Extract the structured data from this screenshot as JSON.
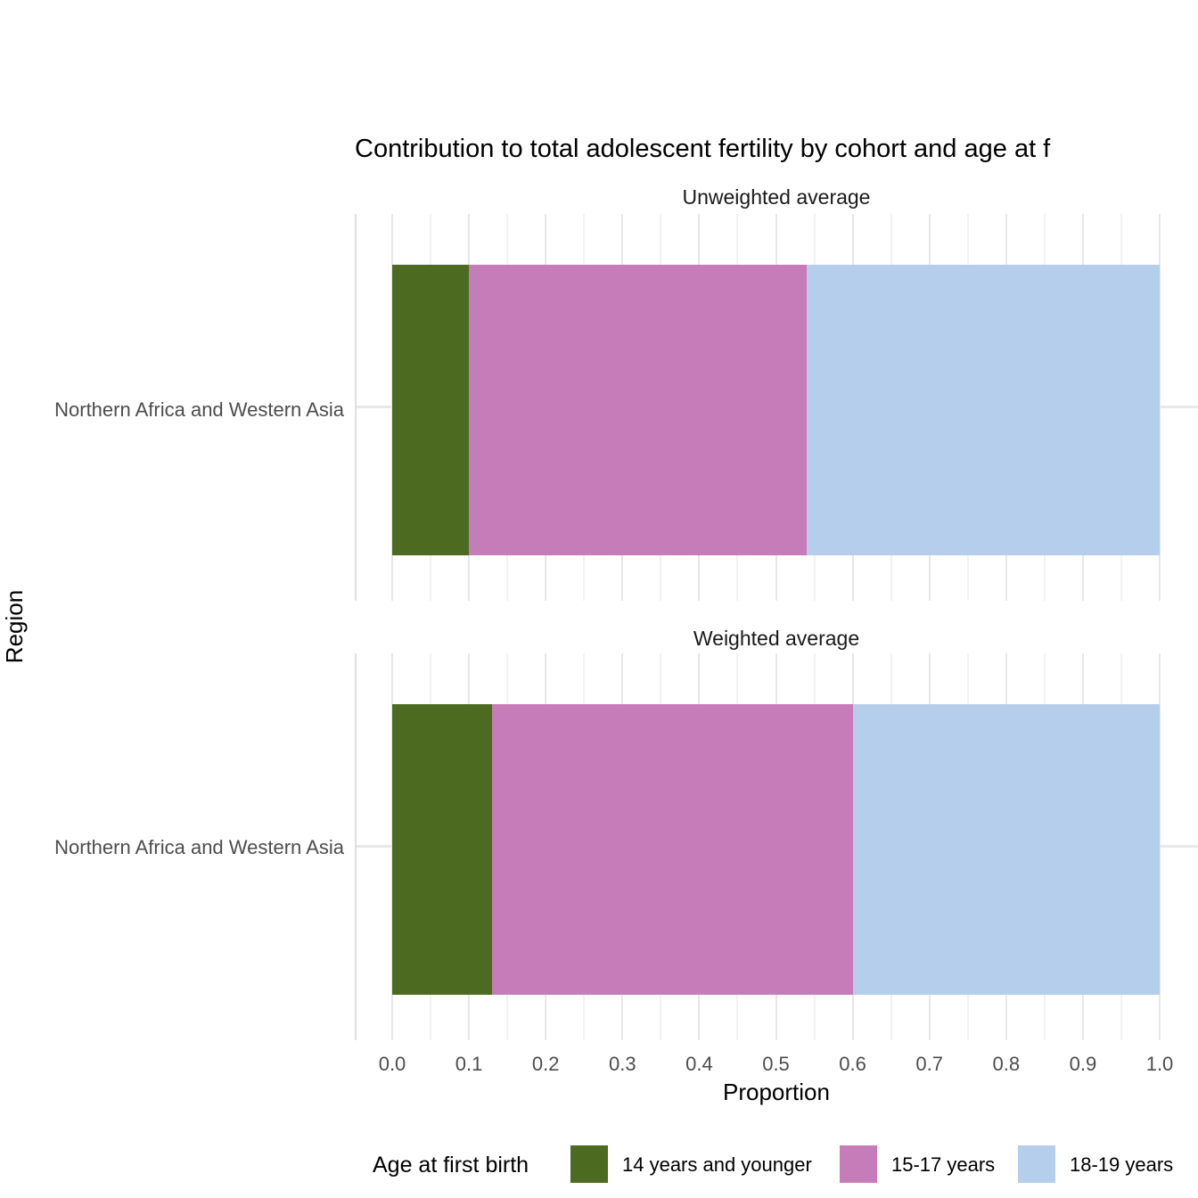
{
  "title": "Contribution to total adolescent fertility by cohort and age at f",
  "axes": {
    "x_label": "Proportion",
    "y_label": "Region",
    "category": "Northern Africa and Western Asia",
    "x_ticks": [
      "0.0",
      "0.1",
      "0.2",
      "0.3",
      "0.4",
      "0.5",
      "0.6",
      "0.7",
      "0.8",
      "0.9",
      "1.0"
    ]
  },
  "panels": [
    {
      "strip": "Unweighted average"
    },
    {
      "strip": "Weighted average"
    }
  ],
  "legend": {
    "title": "Age at first birth",
    "items": [
      {
        "label": "14 years and younger",
        "color": "#4C6A20"
      },
      {
        "label": "15-17 years",
        "color": "#C77CBA"
      },
      {
        "label": "18-19 years",
        "color": "#B5CEEC"
      }
    ]
  },
  "colors": {
    "grid_major": "#E7E7E7",
    "grid_minor": "#F2F2F2",
    "axis_text": "#4D4D4D",
    "strip_text": "#1A1A1A"
  },
  "chart_data": {
    "type": "bar",
    "orientation": "horizontal",
    "stacked": true,
    "title": "Contribution to total adolescent fertility by cohort and age at f",
    "xlabel": "Proportion",
    "ylabel": "Region",
    "xlim": [
      0,
      1
    ],
    "x_tick_values": [
      0.0,
      0.1,
      0.2,
      0.3,
      0.4,
      0.5,
      0.6,
      0.7,
      0.8,
      0.9,
      1.0
    ],
    "grid": true,
    "legend_position": "bottom",
    "legend_title": "Age at first birth",
    "categories": [
      "Northern Africa and Western Asia"
    ],
    "facets": [
      {
        "label": "Unweighted average",
        "category": "Northern Africa and Western Asia",
        "series": [
          {
            "name": "14 years and younger",
            "value": 0.1
          },
          {
            "name": "15-17 years",
            "value": 0.44
          },
          {
            "name": "18-19 years",
            "value": 0.46
          }
        ]
      },
      {
        "label": "Weighted average",
        "category": "Northern Africa and Western Asia",
        "series": [
          {
            "name": "14 years and younger",
            "value": 0.13
          },
          {
            "name": "15-17 years",
            "value": 0.47
          },
          {
            "name": "18-19 years",
            "value": 0.4
          }
        ]
      }
    ],
    "series_colors": {
      "14 years and younger": "#4C6A20",
      "15-17 years": "#C77CBA",
      "18-19 years": "#B5CEEC"
    }
  }
}
